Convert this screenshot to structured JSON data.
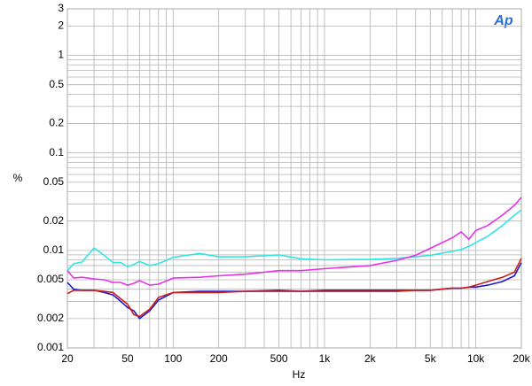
{
  "chart_data": {
    "type": "line",
    "logo": "Ap",
    "xlabel": "Hz",
    "ylabel": "%",
    "xscale": "log",
    "yscale": "log",
    "grid": true,
    "xlim": [
      20,
      20000
    ],
    "ylim": [
      0.001,
      3
    ],
    "xticks": [
      20,
      50,
      100,
      200,
      500,
      {
        "value": 1000,
        "label": "1k"
      },
      {
        "value": 2000,
        "label": "2k"
      },
      {
        "value": 5000,
        "label": "5k"
      },
      {
        "value": 10000,
        "label": "10k"
      },
      {
        "value": 20000,
        "label": "20k"
      }
    ],
    "yticks": [
      0.001,
      0.002,
      0.005,
      0.01,
      0.02,
      0.05,
      0.1,
      0.2,
      0.5,
      1,
      2,
      3
    ],
    "x_minor_grid": [
      30,
      40,
      60,
      70,
      80,
      90,
      300,
      400,
      600,
      700,
      800,
      900,
      3000,
      4000,
      6000,
      7000,
      8000,
      9000
    ],
    "y_minor_grid": [
      0.003,
      0.004,
      0.006,
      0.007,
      0.008,
      0.009,
      0.03,
      0.04,
      0.06,
      0.07,
      0.08,
      0.09,
      0.3,
      0.4,
      0.6,
      0.7,
      0.8,
      0.9
    ],
    "x": [
      20,
      22,
      25,
      30,
      35,
      40,
      45,
      50,
      55,
      60,
      70,
      80,
      100,
      150,
      200,
      300,
      500,
      700,
      1000,
      2000,
      3000,
      4000,
      5000,
      7000,
      8000,
      9000,
      10000,
      12000,
      15000,
      18000,
      20000
    ],
    "series": [
      {
        "color": "#33e6e6",
        "values": [
          0.0062,
          0.0073,
          0.0076,
          0.0106,
          0.0089,
          0.0075,
          0.0075,
          0.0068,
          0.0072,
          0.0077,
          0.007,
          0.0073,
          0.0085,
          0.0093,
          0.0086,
          0.0086,
          0.009,
          0.0082,
          0.008,
          0.0081,
          0.0083,
          0.0086,
          0.0089,
          0.0098,
          0.0102,
          0.011,
          0.012,
          0.014,
          0.018,
          0.023,
          0.026
        ]
      },
      {
        "color": "#e633e6",
        "values": [
          0.0062,
          0.0052,
          0.0053,
          0.0051,
          0.005,
          0.0047,
          0.0047,
          0.0044,
          0.0046,
          0.0049,
          0.0044,
          0.0045,
          0.0052,
          0.0053,
          0.0055,
          0.0057,
          0.0062,
          0.0062,
          0.0065,
          0.007,
          0.0079,
          0.0089,
          0.0105,
          0.0135,
          0.0155,
          0.013,
          0.016,
          0.018,
          0.023,
          0.029,
          0.035
        ]
      },
      {
        "color": "#1a1ad0",
        "values": [
          0.0047,
          0.004,
          0.0039,
          0.0039,
          0.0037,
          0.0035,
          0.003,
          0.0026,
          0.0024,
          0.002,
          0.0024,
          0.0031,
          0.0037,
          0.0038,
          0.0038,
          0.0038,
          0.0039,
          0.0038,
          0.0039,
          0.0039,
          0.0039,
          0.0039,
          0.0039,
          0.0041,
          0.0041,
          0.0042,
          0.0042,
          0.0044,
          0.0048,
          0.0055,
          0.0075
        ]
      },
      {
        "color": "#d01a1a",
        "values": [
          0.0036,
          0.0039,
          0.0039,
          0.0039,
          0.0038,
          0.0037,
          0.0032,
          0.0028,
          0.0022,
          0.0021,
          0.0025,
          0.0033,
          0.0037,
          0.0037,
          0.0037,
          0.0038,
          0.0038,
          0.0038,
          0.0038,
          0.0038,
          0.0038,
          0.0039,
          0.0039,
          0.0041,
          0.0041,
          0.0042,
          0.0044,
          0.0048,
          0.0053,
          0.006,
          0.0083
        ]
      }
    ]
  }
}
